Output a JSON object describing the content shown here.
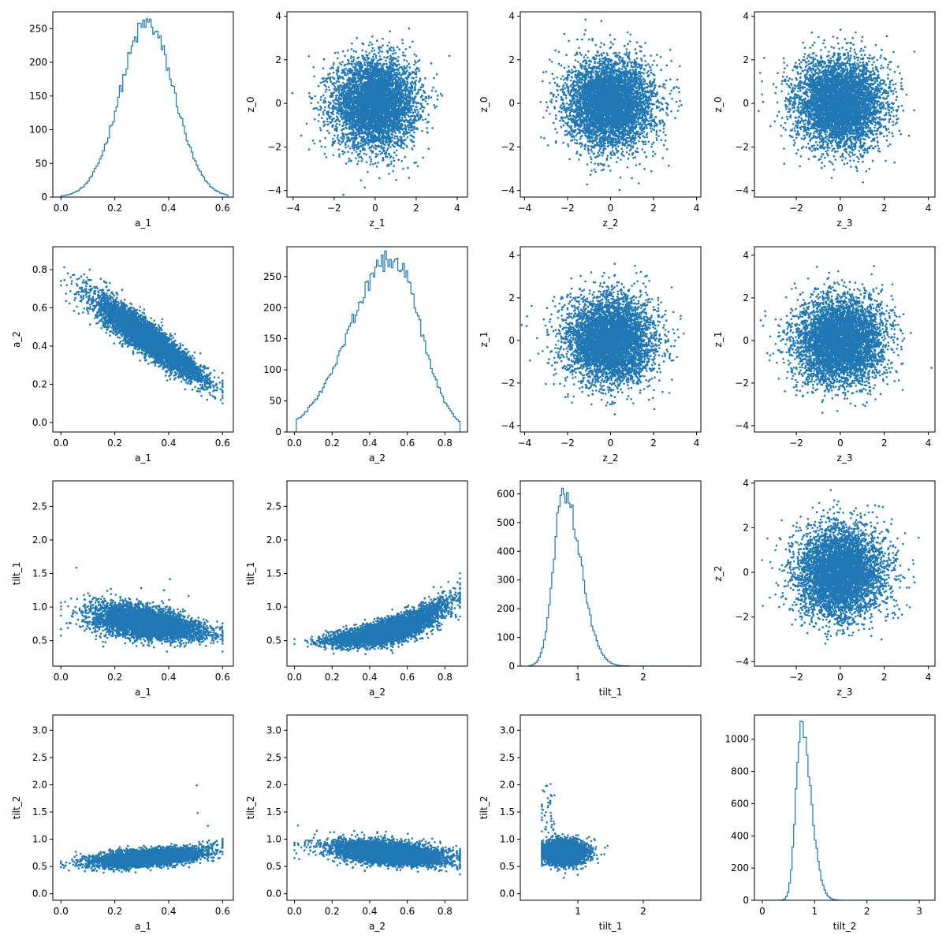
{
  "figure": {
    "rows": 4,
    "cols": 4,
    "color": "#1f77b4",
    "background": "#ffffff"
  },
  "chart_data": [
    {
      "panel": "r0c0",
      "type": "histogram",
      "xlabel": "a_1",
      "ylabel": "",
      "xlim": [
        -0.03,
        0.64
      ],
      "ylim": [
        0,
        275
      ],
      "xticks": [
        0.0,
        0.2,
        0.4,
        0.6
      ],
      "yticks": [
        0,
        50,
        100,
        150,
        200,
        250
      ],
      "dist": {
        "mean": 0.32,
        "sd": 0.1,
        "peak": 258,
        "min": 0.0,
        "max": 0.62
      }
    },
    {
      "panel": "r0c1",
      "type": "scatter",
      "xlabel": "z_1",
      "ylabel": "z_0",
      "xlim": [
        -4.3,
        4.5
      ],
      "ylim": [
        -4.3,
        4.2
      ],
      "xticks": [
        -4,
        -2,
        0,
        2,
        4
      ],
      "yticks": [
        -4,
        -2,
        0,
        2,
        4
      ],
      "dist": {
        "kind": "normal2d",
        "mx": 0,
        "my": 0,
        "sx": 1,
        "sy": 1
      }
    },
    {
      "panel": "r0c2",
      "type": "scatter",
      "xlabel": "z_2",
      "ylabel": "z_0",
      "xlim": [
        -4.2,
        4.2
      ],
      "ylim": [
        -4.3,
        4.2
      ],
      "xticks": [
        -4,
        -2,
        0,
        2,
        4
      ],
      "yticks": [
        -4,
        -2,
        0,
        2,
        4
      ],
      "dist": {
        "kind": "normal2d",
        "mx": 0,
        "my": 0,
        "sx": 1,
        "sy": 1
      }
    },
    {
      "panel": "r0c3",
      "type": "scatter",
      "xlabel": "z_3",
      "ylabel": "z_0",
      "xlim": [
        -3.9,
        4.3
      ],
      "ylim": [
        -4.3,
        4.2
      ],
      "xticks": [
        -2,
        0,
        2,
        4
      ],
      "yticks": [
        -4,
        -2,
        0,
        2,
        4
      ],
      "dist": {
        "kind": "normal2d",
        "mx": 0,
        "my": 0,
        "sx": 1,
        "sy": 1
      }
    },
    {
      "panel": "r1c0",
      "type": "scatter",
      "xlabel": "a_1",
      "ylabel": "a_2",
      "xlim": [
        -0.03,
        0.64
      ],
      "ylim": [
        -0.05,
        0.92
      ],
      "xticks": [
        0.0,
        0.2,
        0.4,
        0.6
      ],
      "yticks": [
        0.0,
        0.2,
        0.4,
        0.6,
        0.8
      ],
      "dist": {
        "kind": "neg_linear",
        "mx": 0.32,
        "sx": 0.1,
        "b0": 0.76,
        "b1": -1.0,
        "noise": 0.06
      }
    },
    {
      "panel": "r1c1",
      "type": "histogram",
      "xlabel": "a_2",
      "ylabel": "",
      "xlim": [
        -0.04,
        0.92
      ],
      "ylim": [
        0,
        298
      ],
      "xticks": [
        0.0,
        0.2,
        0.4,
        0.6,
        0.8
      ],
      "yticks": [
        0,
        50,
        100,
        150,
        200,
        250
      ],
      "dist": {
        "mean": 0.52,
        "sd": 0.15,
        "skew": -0.8,
        "peak": 280,
        "min": 0.01,
        "max": 0.88
      }
    },
    {
      "panel": "r1c2",
      "type": "scatter",
      "xlabel": "z_2",
      "ylabel": "z_1",
      "xlim": [
        -4.2,
        4.2
      ],
      "ylim": [
        -4.3,
        4.4
      ],
      "xticks": [
        -4,
        -2,
        0,
        2,
        4
      ],
      "yticks": [
        -4,
        -2,
        0,
        2,
        4
      ],
      "dist": {
        "kind": "normal2d",
        "mx": 0,
        "my": 0,
        "sx": 1,
        "sy": 1
      }
    },
    {
      "panel": "r1c3",
      "type": "scatter",
      "xlabel": "z_3",
      "ylabel": "z_1",
      "xlim": [
        -3.9,
        4.3
      ],
      "ylim": [
        -4.3,
        4.4
      ],
      "xticks": [
        -2,
        0,
        2,
        4
      ],
      "yticks": [
        -4,
        -2,
        0,
        2,
        4
      ],
      "dist": {
        "kind": "normal2d",
        "mx": 0,
        "my": 0,
        "sx": 1,
        "sy": 1
      }
    },
    {
      "panel": "r2c0",
      "type": "scatter",
      "xlabel": "a_1",
      "ylabel": "tilt_1",
      "xlim": [
        -0.03,
        0.64
      ],
      "ylim": [
        0.12,
        2.88
      ],
      "xticks": [
        0.0,
        0.2,
        0.4,
        0.6
      ],
      "yticks": [
        0.5,
        1.0,
        1.5,
        2.0,
        2.5
      ],
      "dist": {
        "kind": "tilt1_vs_a1",
        "mx": 0.32,
        "sx": 0.1
      }
    },
    {
      "panel": "r2c1",
      "type": "scatter",
      "xlabel": "a_2",
      "ylabel": "tilt_1",
      "xlim": [
        -0.04,
        0.92
      ],
      "ylim": [
        0.12,
        2.88
      ],
      "xticks": [
        0.0,
        0.2,
        0.4,
        0.6,
        0.8
      ],
      "yticks": [
        0.5,
        1.0,
        1.5,
        2.0,
        2.5
      ],
      "dist": {
        "kind": "tilt1_vs_a2",
        "mx": 0.5,
        "sx": 0.15
      }
    },
    {
      "panel": "r2c2",
      "type": "histogram",
      "xlabel": "tilt_1",
      "ylabel": "",
      "xlim": [
        0.12,
        2.88
      ],
      "ylim": [
        0,
        645
      ],
      "xticks": [
        1,
        2
      ],
      "yticks": [
        0,
        100,
        200,
        300,
        400,
        500,
        600
      ],
      "dist": {
        "mean": 0.78,
        "sd": 0.15,
        "skew": 1.2,
        "peak": 610,
        "min": 0.25,
        "max": 2.76
      }
    },
    {
      "panel": "r2c3",
      "type": "scatter",
      "xlabel": "z_3",
      "ylabel": "z_2",
      "xlim": [
        -3.9,
        4.3
      ],
      "ylim": [
        -4.2,
        4.1
      ],
      "xticks": [
        -2,
        0,
        2,
        4
      ],
      "yticks": [
        -4,
        -2,
        0,
        2,
        4
      ],
      "dist": {
        "kind": "normal2d",
        "mx": 0,
        "my": 0,
        "sx": 1,
        "sy": 1
      }
    },
    {
      "panel": "r3c0",
      "type": "scatter",
      "xlabel": "a_1",
      "ylabel": "tilt_2",
      "xlim": [
        -0.03,
        0.64
      ],
      "ylim": [
        -0.12,
        3.28
      ],
      "xticks": [
        0.0,
        0.2,
        0.4,
        0.6
      ],
      "yticks": [
        0.0,
        0.5,
        1.0,
        1.5,
        2.0,
        2.5,
        3.0
      ],
      "dist": {
        "kind": "tilt2_vs_a1",
        "mx": 0.32,
        "sx": 0.1
      }
    },
    {
      "panel": "r3c1",
      "type": "scatter",
      "xlabel": "a_2",
      "ylabel": "tilt_2",
      "xlim": [
        -0.04,
        0.92
      ],
      "ylim": [
        -0.12,
        3.28
      ],
      "xticks": [
        0.0,
        0.2,
        0.4,
        0.6,
        0.8
      ],
      "yticks": [
        0.0,
        0.5,
        1.0,
        1.5,
        2.0,
        2.5,
        3.0
      ],
      "dist": {
        "kind": "tilt2_vs_a2",
        "mx": 0.5,
        "sx": 0.15
      }
    },
    {
      "panel": "r3c2",
      "type": "scatter",
      "xlabel": "tilt_1",
      "ylabel": "tilt_2",
      "xlim": [
        0.12,
        2.88
      ],
      "ylim": [
        -0.12,
        3.28
      ],
      "xticks": [
        1,
        2
      ],
      "yticks": [
        0.0,
        0.5,
        1.0,
        1.5,
        2.0,
        2.5,
        3.0
      ],
      "dist": {
        "kind": "tilt2_vs_tilt1"
      }
    },
    {
      "panel": "r3c3",
      "type": "histogram",
      "xlabel": "tilt_2",
      "ylabel": "",
      "xlim": [
        -0.15,
        3.3
      ],
      "ylim": [
        0,
        1150
      ],
      "xticks": [
        0,
        1,
        2,
        3
      ],
      "yticks": [
        0,
        200,
        400,
        600,
        800,
        1000
      ],
      "dist": {
        "mean": 0.74,
        "sd": 0.1,
        "skew": 1.5,
        "peak": 1090,
        "min": 0.05,
        "max": 3.1
      }
    }
  ]
}
